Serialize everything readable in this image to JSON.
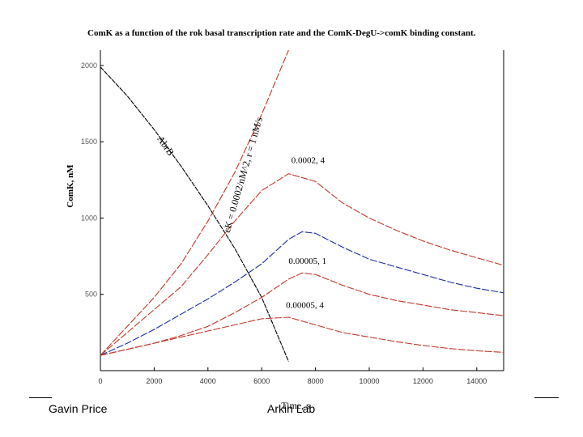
{
  "footer": {
    "left": "Gavin Price",
    "center": "Arkin Lab"
  },
  "colors": {
    "red_series": "#c0392b",
    "blue_series": "#1a2fa0",
    "black_series": "#000000"
  },
  "chart_data": {
    "type": "line",
    "title": "ComK as a function of the rok basal transcription rate and the ComK-DegU->comK binding constant.",
    "xlabel": "Time, s",
    "ylabel": "ComK, nM",
    "xlim": [
      0,
      15000
    ],
    "ylim": [
      0,
      2100
    ],
    "x_ticks": [
      "0",
      "2000",
      "4000",
      "6000",
      "8000",
      "10000",
      "12000",
      "14000"
    ],
    "y_ticks": [
      "500",
      "1000",
      "1500",
      "2000"
    ],
    "grid": false,
    "series": [
      {
        "name": "AbrB",
        "color": "black",
        "x": [
          0,
          1000,
          2000,
          3000,
          4000,
          5000,
          6000,
          7000
        ],
        "y": [
          1990,
          1800,
          1580,
          1340,
          1080,
          800,
          480,
          60
        ]
      },
      {
        "name": "cK = 0.0002/nM^2, r = 1 nM/s",
        "color": "red",
        "x": [
          0,
          1000,
          2000,
          3000,
          4000,
          5000,
          6000,
          7000
        ],
        "y": [
          100,
          290,
          480,
          700,
          980,
          1300,
          1680,
          2100
        ]
      },
      {
        "name": "0.0002, 4",
        "color": "red",
        "x": [
          0,
          1000,
          2000,
          3000,
          4000,
          5000,
          6000,
          7000,
          8000,
          9000,
          10000,
          11000,
          12000,
          13000,
          14000,
          15000
        ],
        "y": [
          100,
          250,
          400,
          550,
          760,
          980,
          1180,
          1290,
          1240,
          1100,
          1000,
          920,
          850,
          790,
          740,
          690
        ]
      },
      {
        "color": "blue",
        "x": [
          0,
          1000,
          2000,
          3000,
          4000,
          5000,
          6000,
          7000,
          7500,
          8000,
          9000,
          10000,
          11000,
          12000,
          13000,
          14000,
          15000
        ],
        "y": [
          100,
          180,
          270,
          370,
          470,
          580,
          700,
          860,
          910,
          900,
          810,
          730,
          680,
          630,
          580,
          540,
          510
        ]
      },
      {
        "name": "0.00005, 1",
        "color": "red",
        "x": [
          0,
          1000,
          2000,
          3000,
          4000,
          5000,
          6000,
          7000,
          7500,
          8000,
          9000,
          10000,
          11000,
          12000,
          13000,
          14000,
          15000
        ],
        "y": [
          100,
          140,
          180,
          230,
          290,
          380,
          480,
          600,
          640,
          630,
          560,
          500,
          460,
          430,
          400,
          380,
          360
        ]
      },
      {
        "name": "0.00005, 4",
        "color": "red",
        "x": [
          0,
          1000,
          2000,
          3000,
          4000,
          5000,
          6000,
          7000,
          8000,
          9000,
          10000,
          11000,
          12000,
          13000,
          14000,
          15000
        ],
        "y": [
          100,
          140,
          180,
          220,
          260,
          300,
          340,
          350,
          300,
          250,
          220,
          190,
          165,
          145,
          130,
          120
        ]
      }
    ]
  }
}
